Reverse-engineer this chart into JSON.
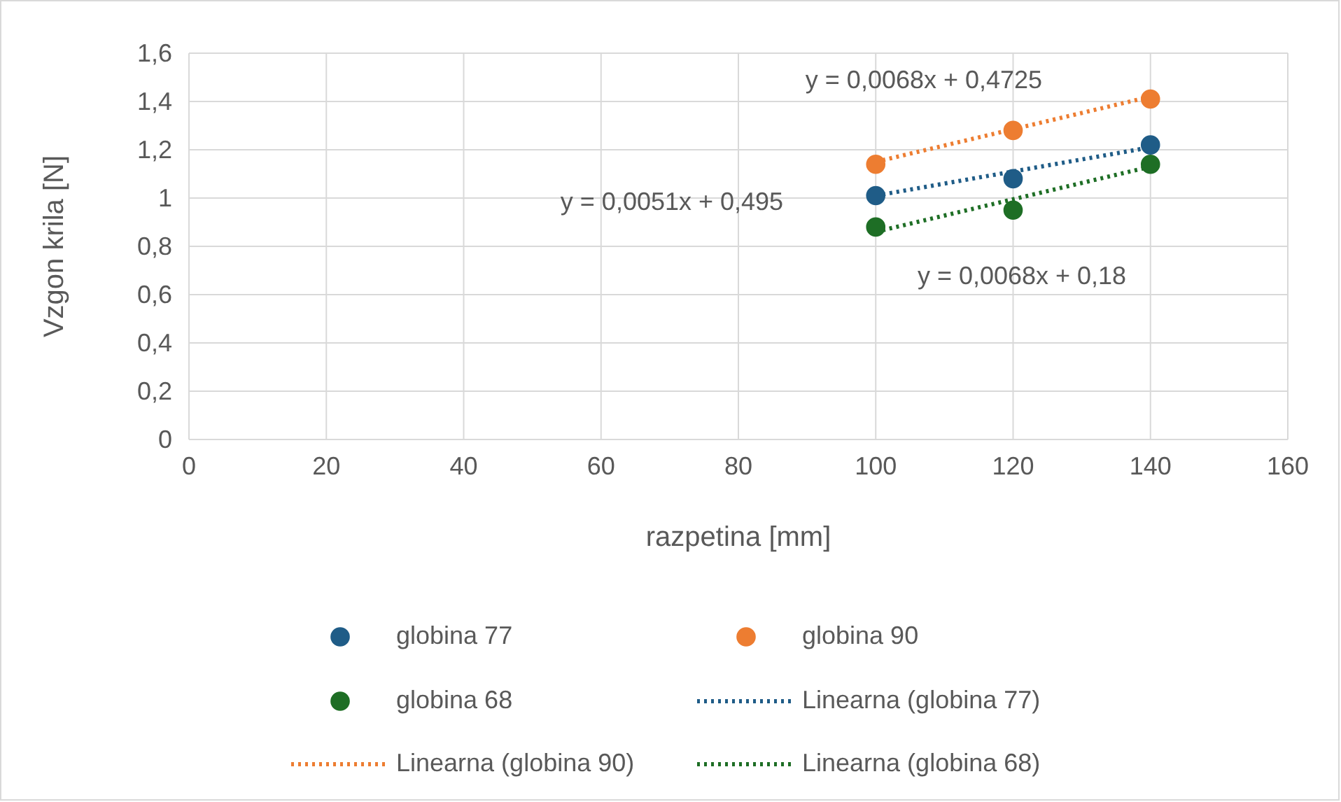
{
  "chart_data": {
    "type": "scatter",
    "xlabel": "razpetina [mm]",
    "ylabel": "Vzgon krila [N]",
    "xlim": [
      0,
      160
    ],
    "xticks": [
      0,
      20,
      40,
      60,
      80,
      100,
      120,
      140,
      160
    ],
    "ylim": [
      0,
      1.6
    ],
    "yticks": [
      0,
      {
        "value": 0.2,
        "label": "0,2"
      },
      {
        "value": 0.4,
        "label": "0,4"
      },
      {
        "value": 0.6,
        "label": "0,6"
      },
      {
        "value": 0.8,
        "label": "0,8"
      },
      1,
      {
        "value": 1.2,
        "label": "1,2"
      },
      {
        "value": 1.4,
        "label": "1,4"
      },
      {
        "value": 1.6,
        "label": "1,6"
      }
    ],
    "grid": true,
    "legend": "bottom",
    "marker": "circle",
    "series": [
      {
        "name": "globina 77",
        "color": "#1f5c87",
        "x": [
          100,
          120,
          140
        ],
        "values": [
          1.01,
          1.08,
          1.22
        ]
      },
      {
        "name": "globina 90",
        "color": "#ed7d31",
        "x": [
          100,
          120,
          140
        ],
        "values": [
          1.14,
          1.28,
          1.41
        ]
      },
      {
        "name": "globina 68",
        "color": "#1e6e25",
        "x": [
          100,
          120,
          140
        ],
        "values": [
          0.88,
          0.95,
          1.14
        ]
      },
      {
        "name": "Linearna (globina 77)",
        "type": "line",
        "line_style": "dotted",
        "marker": "none",
        "color": "#1f5c87",
        "x": [
          100,
          140
        ],
        "values": [
          1.01,
          1.21
        ]
      },
      {
        "name": "Linearna (globina 90)",
        "type": "line",
        "line_style": "dotted",
        "marker": "none",
        "color": "#ed7d31",
        "x": [
          100,
          140
        ],
        "values": [
          1.15,
          1.42
        ]
      },
      {
        "name": "Linearna (globina 68)",
        "type": "line",
        "line_style": "dotted",
        "marker": "none",
        "color": "#1e6e25",
        "x": [
          100,
          140
        ],
        "values": [
          0.86,
          1.13
        ]
      }
    ],
    "annotations": [
      "y = 0,0068x + 0,4725",
      "y = 0,0051x + 0,495",
      "y = 0,0068x + 0,18"
    ]
  }
}
